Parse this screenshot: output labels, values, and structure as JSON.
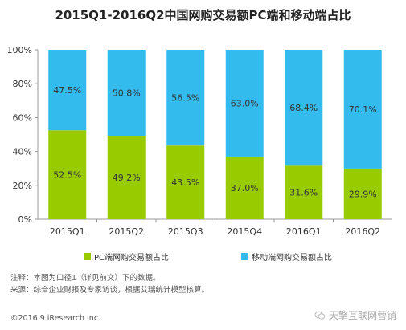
{
  "title": "2015Q1-2016Q2中国网购交易额PC端和移动端占比",
  "chart_data": {
    "type": "bar",
    "stacked": true,
    "categories": [
      "2015Q1",
      "2015Q2",
      "2015Q3",
      "2015Q4",
      "2016Q1",
      "2016Q2"
    ],
    "series": [
      {
        "name": "PC端网购交易额占比",
        "values": [
          52.5,
          49.2,
          43.5,
          37.0,
          31.6,
          29.9
        ],
        "labels": [
          "52.5%",
          "49.2%",
          "43.5%",
          "37.0%",
          "31.6%",
          "29.9%"
        ],
        "color": "#99cc00"
      },
      {
        "name": "移动端网购交易额占比",
        "values": [
          47.5,
          50.8,
          56.5,
          63.0,
          68.4,
          70.1
        ],
        "labels": [
          "47.5%",
          "50.8%",
          "56.5%",
          "63.0%",
          "68.4%",
          "70.1%"
        ],
        "color": "#33bbee"
      }
    ],
    "y_ticks": [
      "0%",
      "20%",
      "40%",
      "60%",
      "80%",
      "100%"
    ],
    "ylim": [
      0,
      100
    ],
    "grid": false,
    "legend": "bottom"
  },
  "notes": {
    "note1": "注释：本图为口径1（详见前文）下的数据。",
    "note2": "来源：综合企业财报及专家访谈，根据艾瑞统计模型核算。"
  },
  "footer": "©2016.9 iResearch Inc.",
  "watermark": "天擎互联网营销",
  "colors": {
    "pc": "#99cc00",
    "mobile": "#33bbee",
    "axis": "#999999"
  }
}
